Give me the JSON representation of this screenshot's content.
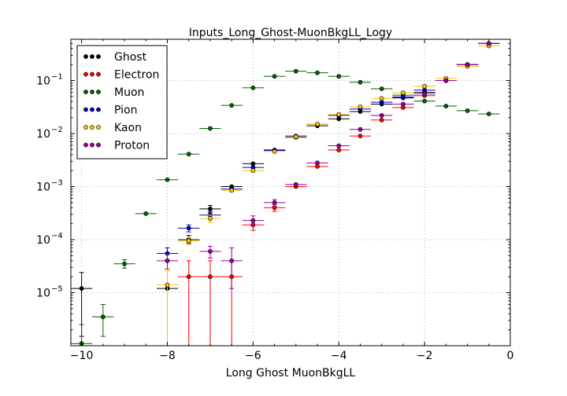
{
  "chart_data": {
    "type": "scatter",
    "title": "Inputs_Long_Ghost-MuonBkgLL_Logy",
    "xlabel": "Long Ghost MuonBkgLL",
    "ylabel": "",
    "xlim": [
      -10.25,
      0
    ],
    "ylim": [
      1e-06,
      0.6
    ],
    "yscale": "log",
    "grid": true,
    "legend_position": "top-left",
    "x_ticks": [
      -10,
      -8,
      -6,
      -4,
      -2,
      0
    ],
    "x_tick_labels": [
      "−10",
      "−8",
      "−6",
      "−4",
      "−2",
      "0"
    ],
    "y_ticks": [
      1e-05,
      0.0001,
      0.001,
      0.01,
      0.1
    ],
    "y_tick_labels": [
      {
        "base": "10",
        "exp": "-5"
      },
      {
        "base": "10",
        "exp": "-4"
      },
      {
        "base": "10",
        "exp": "-3"
      },
      {
        "base": "10",
        "exp": "-2"
      },
      {
        "base": "10",
        "exp": "-1"
      }
    ],
    "bin_half_width": 0.25,
    "series": [
      {
        "name": "Ghost",
        "color": "#000000",
        "points": [
          {
            "x": -10.0,
            "y": 1.2e-05,
            "ylo": 1.5e-06,
            "yhi": 2.4e-05
          },
          {
            "x": -8.0,
            "y": 1.2e-05
          },
          {
            "x": -7.5,
            "y": 0.0001,
            "ylo": 8.5e-05,
            "yhi": 0.00012
          },
          {
            "x": -7.0,
            "y": 0.00038,
            "ylo": 0.00032,
            "yhi": 0.00044
          },
          {
            "x": -6.5,
            "y": 0.001
          },
          {
            "x": -6.0,
            "y": 0.0027
          },
          {
            "x": -5.5,
            "y": 0.0049
          },
          {
            "x": -5.0,
            "y": 0.0085
          },
          {
            "x": -4.5,
            "y": 0.014
          },
          {
            "x": -4.0,
            "y": 0.019
          },
          {
            "x": -3.5,
            "y": 0.026
          },
          {
            "x": -3.0,
            "y": 0.036
          },
          {
            "x": -2.5,
            "y": 0.047
          },
          {
            "x": -2.0,
            "y": 0.06
          },
          {
            "x": -1.5,
            "y": 0.1
          },
          {
            "x": -1.0,
            "y": 0.2
          },
          {
            "x": -0.5,
            "y": 0.5
          }
        ]
      },
      {
        "name": "Electron",
        "color": "#ff0000",
        "points": [
          {
            "x": -7.5,
            "y": 2e-05,
            "ylo": 1e-06,
            "yhi": 4e-05
          },
          {
            "x": -7.0,
            "y": 2e-05,
            "ylo": 1e-06,
            "yhi": 4e-05
          },
          {
            "x": -6.5,
            "y": 2e-05,
            "ylo": 1e-06,
            "yhi": 4e-05
          },
          {
            "x": -6.0,
            "y": 0.00019,
            "ylo": 0.00015,
            "yhi": 0.00023
          },
          {
            "x": -5.5,
            "y": 0.0004,
            "ylo": 0.00034,
            "yhi": 0.00046
          },
          {
            "x": -5.0,
            "y": 0.001
          },
          {
            "x": -4.5,
            "y": 0.0024
          },
          {
            "x": -4.0,
            "y": 0.0049
          },
          {
            "x": -3.5,
            "y": 0.009
          },
          {
            "x": -3.0,
            "y": 0.018
          },
          {
            "x": -2.5,
            "y": 0.031
          },
          {
            "x": -2.0,
            "y": 0.052
          },
          {
            "x": -1.5,
            "y": 0.1
          },
          {
            "x": -1.0,
            "y": 0.2
          },
          {
            "x": -0.5,
            "y": 0.5
          }
        ]
      },
      {
        "name": "Muon",
        "color": "#006400",
        "points": [
          {
            "x": -10.0,
            "y": 1.1e-06,
            "ylo": 1e-06,
            "yhi": 2.5e-06
          },
          {
            "x": -9.5,
            "y": 3.5e-06,
            "ylo": 1.5e-06,
            "yhi": 6e-06
          },
          {
            "x": -9.0,
            "y": 3.5e-05,
            "ylo": 2.9e-05,
            "yhi": 4.2e-05
          },
          {
            "x": -8.5,
            "y": 0.00031
          },
          {
            "x": -8.0,
            "y": 0.00135
          },
          {
            "x": -7.5,
            "y": 0.0041
          },
          {
            "x": -7.0,
            "y": 0.0125
          },
          {
            "x": -6.5,
            "y": 0.034
          },
          {
            "x": -6.0,
            "y": 0.073
          },
          {
            "x": -5.5,
            "y": 0.12
          },
          {
            "x": -5.0,
            "y": 0.15
          },
          {
            "x": -4.5,
            "y": 0.14
          },
          {
            "x": -4.0,
            "y": 0.12
          },
          {
            "x": -3.5,
            "y": 0.093
          },
          {
            "x": -3.0,
            "y": 0.07
          },
          {
            "x": -2.5,
            "y": 0.053
          },
          {
            "x": -2.0,
            "y": 0.041
          },
          {
            "x": -1.5,
            "y": 0.033
          },
          {
            "x": -1.0,
            "y": 0.027
          },
          {
            "x": -0.5,
            "y": 0.0235
          }
        ]
      },
      {
        "name": "Pion",
        "color": "#0000cd",
        "points": [
          {
            "x": -8.0,
            "y": 5.5e-05,
            "ylo": 4.2e-05,
            "yhi": 7e-05
          },
          {
            "x": -7.5,
            "y": 0.000165,
            "ylo": 0.00014,
            "yhi": 0.00019
          },
          {
            "x": -7.0,
            "y": 0.00029,
            "ylo": 0.00025,
            "yhi": 0.00034
          },
          {
            "x": -6.5,
            "y": 0.0009
          },
          {
            "x": -6.0,
            "y": 0.0023
          },
          {
            "x": -5.5,
            "y": 0.0048
          },
          {
            "x": -5.0,
            "y": 0.009
          },
          {
            "x": -4.5,
            "y": 0.015
          },
          {
            "x": -4.0,
            "y": 0.022
          },
          {
            "x": -3.5,
            "y": 0.029
          },
          {
            "x": -3.0,
            "y": 0.039
          },
          {
            "x": -2.5,
            "y": 0.049
          },
          {
            "x": -2.0,
            "y": 0.066
          },
          {
            "x": -1.5,
            "y": 0.1
          },
          {
            "x": -1.0,
            "y": 0.2
          },
          {
            "x": -0.5,
            "y": 0.5
          }
        ]
      },
      {
        "name": "Kaon",
        "color": "#ffc000",
        "points": [
          {
            "x": -8.0,
            "y": 1.4e-05,
            "ylo": 1e-06,
            "yhi": 2.6e-05
          },
          {
            "x": -7.5,
            "y": 9.5e-05,
            "ylo": 8e-05,
            "yhi": 0.00011
          },
          {
            "x": -7.0,
            "y": 0.00025,
            "ylo": 0.00021,
            "yhi": 0.00029
          },
          {
            "x": -6.5,
            "y": 0.00085
          },
          {
            "x": -6.0,
            "y": 0.002
          },
          {
            "x": -5.5,
            "y": 0.0046
          },
          {
            "x": -5.0,
            "y": 0.0087
          },
          {
            "x": -4.5,
            "y": 0.015
          },
          {
            "x": -4.0,
            "y": 0.023
          },
          {
            "x": -3.5,
            "y": 0.032
          },
          {
            "x": -3.0,
            "y": 0.046
          },
          {
            "x": -2.5,
            "y": 0.059
          },
          {
            "x": -2.0,
            "y": 0.078
          },
          {
            "x": -1.5,
            "y": 0.11
          },
          {
            "x": -1.0,
            "y": 0.185
          },
          {
            "x": -0.5,
            "y": 0.45
          }
        ]
      },
      {
        "name": "Proton",
        "color": "#990099",
        "points": [
          {
            "x": -8.0,
            "y": 4e-05,
            "ylo": 2.8e-05,
            "yhi": 5.4e-05
          },
          {
            "x": -7.0,
            "y": 6e-05,
            "ylo": 4.5e-05,
            "yhi": 7.5e-05
          },
          {
            "x": -6.5,
            "y": 4e-05,
            "ylo": 1.2e-05,
            "yhi": 7e-05
          },
          {
            "x": -6.0,
            "y": 0.00023,
            "ylo": 0.00019,
            "yhi": 0.00028
          },
          {
            "x": -5.5,
            "y": 0.0005,
            "ylo": 0.00043,
            "yhi": 0.00057
          },
          {
            "x": -5.0,
            "y": 0.0011
          },
          {
            "x": -4.5,
            "y": 0.0028
          },
          {
            "x": -4.0,
            "y": 0.0059
          },
          {
            "x": -3.5,
            "y": 0.012
          },
          {
            "x": -3.0,
            "y": 0.022
          },
          {
            "x": -2.5,
            "y": 0.036
          },
          {
            "x": -2.0,
            "y": 0.056
          },
          {
            "x": -1.5,
            "y": 0.1
          },
          {
            "x": -1.0,
            "y": 0.2
          },
          {
            "x": -0.5,
            "y": 0.5
          }
        ]
      }
    ]
  }
}
